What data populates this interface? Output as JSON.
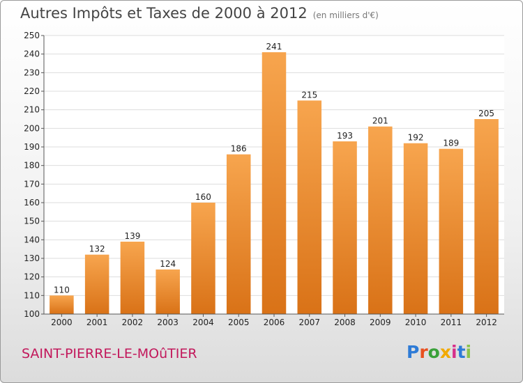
{
  "title": "Autres Impôts et Taxes de 2000 à 2012",
  "subtitle": "(en milliers d'€)",
  "footer": {
    "commune": "SAINT-PIERRE-LE-MOûTIER",
    "brand": "Proxiti"
  },
  "colors": {
    "bar_light": "#f7a54e",
    "bar_dark": "#d97217",
    "grid": "#dddddd",
    "commune": "#c2185b"
  },
  "chart_data": {
    "type": "bar",
    "title": "Autres Impôts et Taxes de 2000 à 2012",
    "subtitle": "(en milliers d'€)",
    "categories": [
      "2000",
      "2001",
      "2002",
      "2003",
      "2004",
      "2005",
      "2006",
      "2007",
      "2008",
      "2009",
      "2010",
      "2011",
      "2012"
    ],
    "values": [
      110,
      132,
      139,
      124,
      160,
      186,
      241,
      215,
      193,
      201,
      192,
      189,
      205
    ],
    "ylim": [
      100,
      250
    ],
    "yticks": [
      100,
      110,
      120,
      130,
      140,
      150,
      160,
      170,
      180,
      190,
      200,
      210,
      220,
      230,
      240,
      250
    ],
    "grid": true
  }
}
